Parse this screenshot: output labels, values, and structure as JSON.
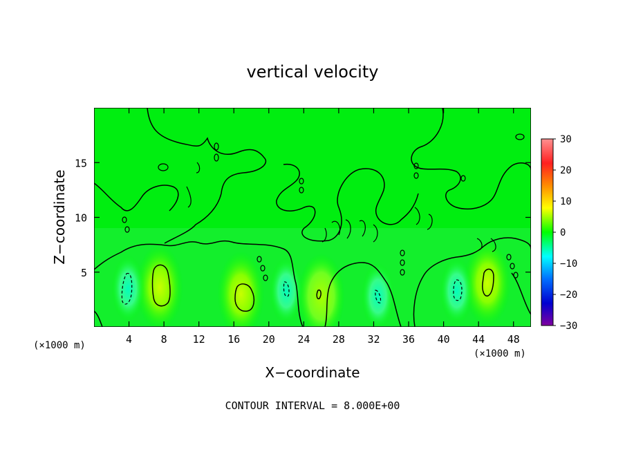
{
  "chart_data": {
    "type": "heatmap",
    "title": "vertical velocity",
    "xlabel": "X−coordinate",
    "ylabel": "Z−coordinate",
    "x_unit_left": "(×1000 m)",
    "x_unit_right": "(×1000 m)",
    "xlim": [
      0,
      50
    ],
    "ylim": [
      0,
      20
    ],
    "x_ticks": [
      4,
      8,
      12,
      16,
      20,
      24,
      28,
      32,
      36,
      40,
      44,
      48
    ],
    "y_ticks": [
      5,
      10,
      15
    ],
    "colorbar": {
      "min": -30,
      "max": 30,
      "ticks": [
        30,
        20,
        10,
        0,
        -10,
        -20,
        -30
      ],
      "tick_labels": [
        "30",
        "20",
        "10",
        "0",
        "−10",
        "−20",
        "−30"
      ],
      "colors": [
        "#ff9090",
        "#ff2020",
        "#ff8c00",
        "#ffff00",
        "#00ff00",
        "#00ffff",
        "#0070ff",
        "#0000d0",
        "#8000a0"
      ]
    },
    "background_value": 0,
    "updraft_cores": [
      {
        "x": 7.5,
        "z": 3.6,
        "peak": 9
      },
      {
        "x": 16.8,
        "z": 3.0,
        "peak": 9
      },
      {
        "x": 26.0,
        "z": 2.8,
        "peak": 6
      },
      {
        "x": 45.0,
        "z": 4.0,
        "peak": 9
      }
    ],
    "downdraft_cores": [
      {
        "x": 3.9,
        "z": 3.5,
        "peak": -8
      },
      {
        "x": 22.0,
        "z": 3.3,
        "peak": -8
      },
      {
        "x": 32.5,
        "z": 2.8,
        "peak": -8
      },
      {
        "x": 41.5,
        "z": 3.3,
        "peak": -8
      }
    ],
    "contour_interval": 8.0,
    "footer": "CONTOUR INTERVAL = 8.000E+00"
  }
}
